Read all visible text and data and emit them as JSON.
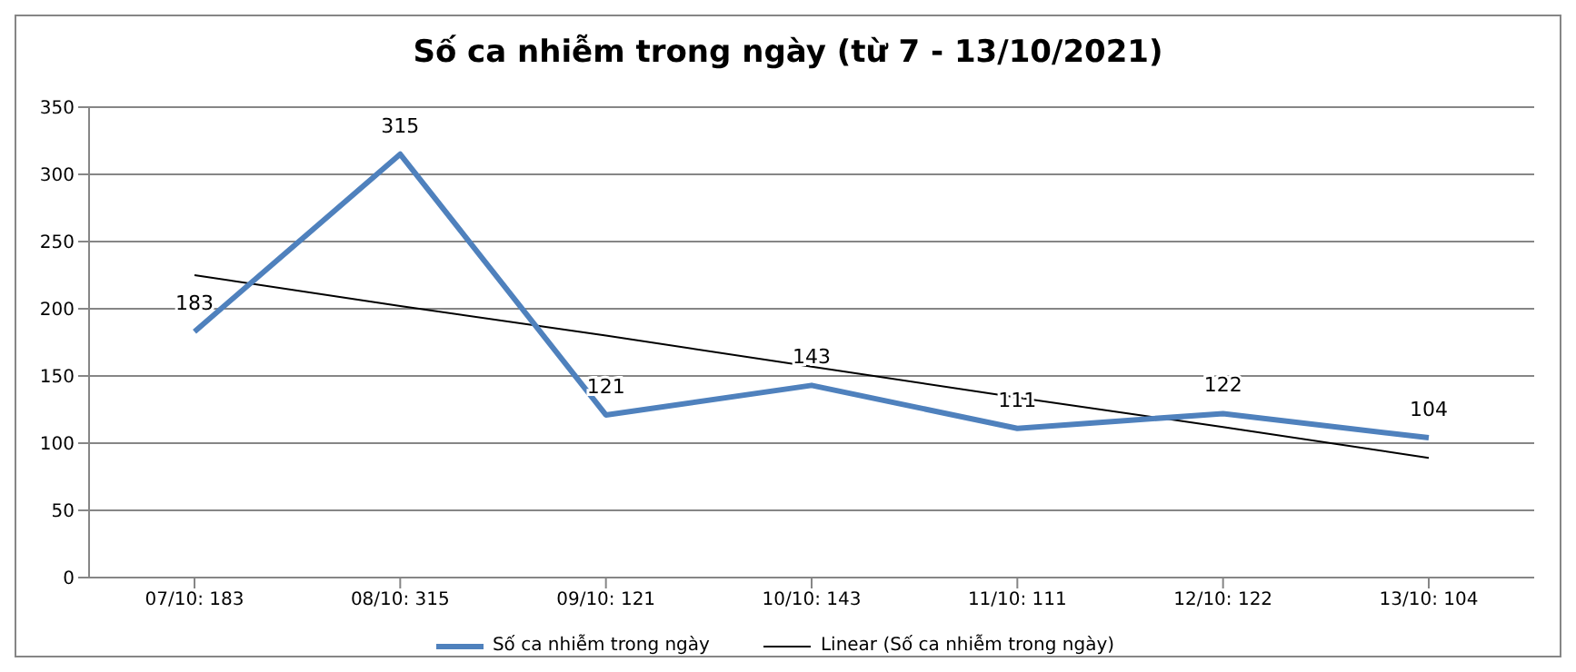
{
  "chart_data": {
    "type": "line",
    "title": "Số ca nhiễm trong ngày (từ 7 - 13/10/2021)",
    "categories": [
      "07/10: 183",
      "08/10: 315",
      "09/10: 121",
      "10/10: 143",
      "11/10: 111",
      "12/10: 122",
      "13/10: 104"
    ],
    "series": [
      {
        "name": "Số ca nhiễm trong ngày",
        "color": "#4f81bd",
        "values": [
          183,
          315,
          121,
          143,
          111,
          122,
          104
        ],
        "value_labels": [
          "183",
          "315",
          "121",
          "143",
          "111",
          "122",
          "104"
        ]
      },
      {
        "name": "Linear (Số ca nhiễm trong ngày)",
        "color": "#000000",
        "values": [
          225,
          202,
          180,
          157,
          134,
          112,
          89
        ]
      }
    ],
    "ylim": [
      0,
      350
    ],
    "yticks": [
      0,
      50,
      100,
      150,
      200,
      250,
      300,
      350
    ],
    "grid": "y",
    "legend": "bottom",
    "marker": "none",
    "line_style": "solid"
  }
}
